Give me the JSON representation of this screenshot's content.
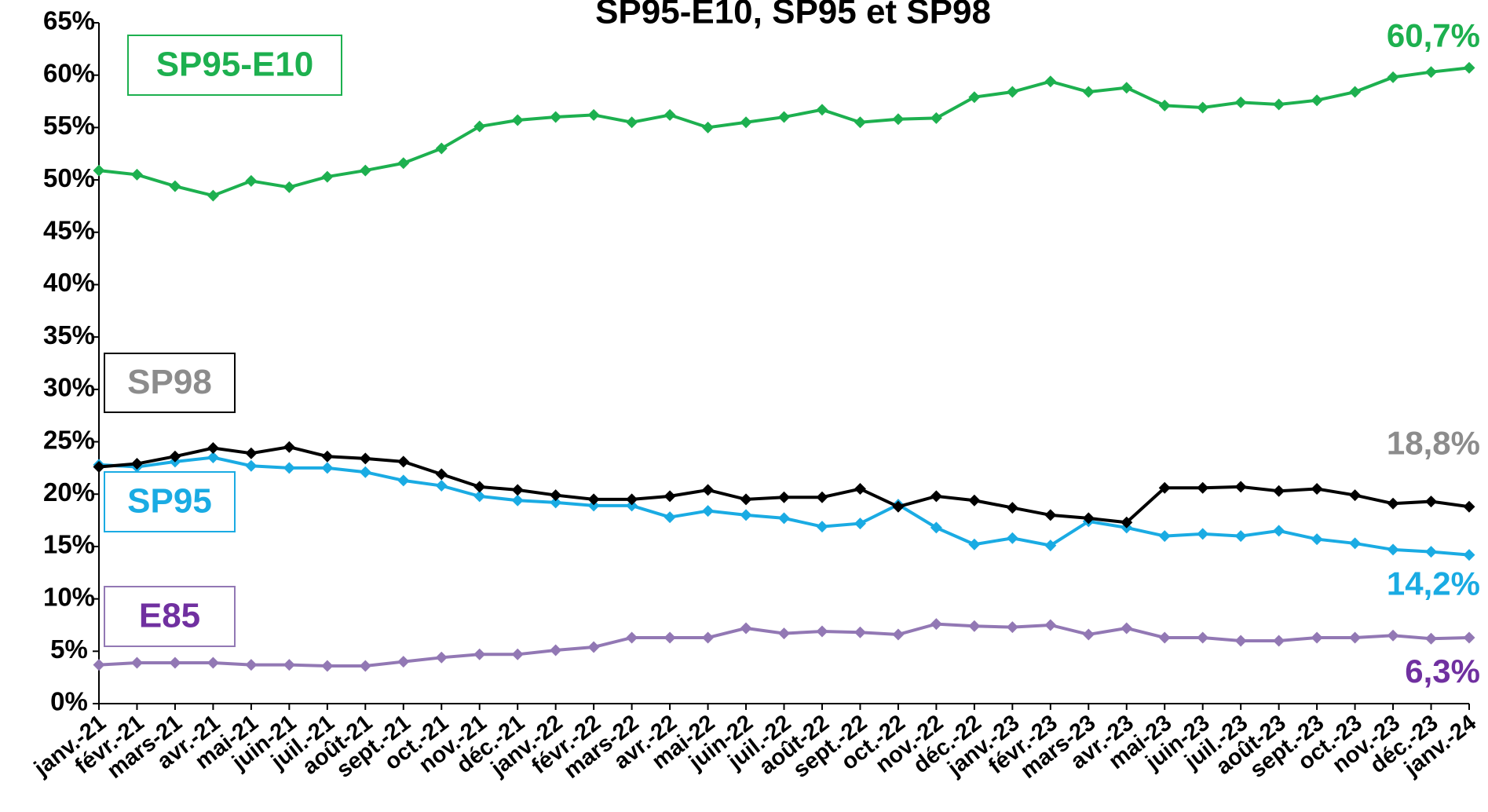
{
  "chart_data": {
    "type": "line",
    "title": "SP95-E10, SP95 et SP98",
    "categories": [
      "janv.-21",
      "févr.-21",
      "mars-21",
      "avr.-21",
      "mai-21",
      "juin-21",
      "juil.-21",
      "août-21",
      "sept.-21",
      "oct.-21",
      "nov.-21",
      "déc.-21",
      "janv.-22",
      "févr.-22",
      "mars-22",
      "avr.-22",
      "mai-22",
      "juin-22",
      "juil.-22",
      "août-22",
      "sept.-22",
      "oct.-22",
      "nov.-22",
      "déc.-22",
      "janv.-23",
      "févr.-23",
      "mars-23",
      "avr.-23",
      "mai-23",
      "juin-23",
      "juil.-23",
      "août-23",
      "sept.-23",
      "oct.-23",
      "nov.-23",
      "déc.-23",
      "janv.-24"
    ],
    "series": [
      {
        "name": "SP95-E10",
        "color": "#1db04f",
        "text_color": "#1db04f",
        "values": [
          50.9,
          50.5,
          49.4,
          48.5,
          49.9,
          49.3,
          50.3,
          50.9,
          51.6,
          53.0,
          55.1,
          55.7,
          56.0,
          56.2,
          55.5,
          56.2,
          55.0,
          55.5,
          56.0,
          56.7,
          55.5,
          55.8,
          55.9,
          57.9,
          58.4,
          59.4,
          58.4,
          58.8,
          57.1,
          56.9,
          57.4,
          57.2,
          57.6,
          58.4,
          59.8,
          60.3,
          60.7
        ],
        "value_labels": [
          null,
          null,
          null,
          null,
          null,
          null,
          null,
          null,
          null,
          null,
          null,
          null,
          null,
          null,
          null,
          null,
          null,
          null,
          null,
          null,
          null,
          null,
          null,
          null,
          null,
          null,
          null,
          null,
          null,
          null,
          null,
          null,
          null,
          null,
          null,
          null,
          "60,7%"
        ]
      },
      {
        "name": "SP98",
        "color": "#000000",
        "text_color": "#8c8c8c",
        "values": [
          22.6,
          22.9,
          23.6,
          24.4,
          23.9,
          24.5,
          23.6,
          23.4,
          23.1,
          21.9,
          20.7,
          20.4,
          19.9,
          19.5,
          19.5,
          19.8,
          20.4,
          19.5,
          19.7,
          19.7,
          20.5,
          18.8,
          19.8,
          19.4,
          18.7,
          18.0,
          17.7,
          17.3,
          20.6,
          20.6,
          20.7,
          20.3,
          20.5,
          19.9,
          19.1,
          19.3,
          18.8
        ],
        "value_labels": [
          null,
          null,
          null,
          null,
          null,
          null,
          null,
          null,
          null,
          null,
          null,
          null,
          null,
          null,
          null,
          null,
          null,
          null,
          null,
          null,
          null,
          null,
          null,
          null,
          null,
          null,
          null,
          null,
          null,
          null,
          null,
          null,
          null,
          null,
          null,
          null,
          "18,8%"
        ]
      },
      {
        "name": "SP95",
        "color": "#1aabe3",
        "text_color": "#1aabe3",
        "values": [
          22.8,
          22.6,
          23.1,
          23.5,
          22.7,
          22.5,
          22.5,
          22.1,
          21.3,
          20.8,
          19.8,
          19.4,
          19.2,
          18.9,
          18.9,
          17.8,
          18.4,
          18.0,
          17.7,
          16.9,
          17.2,
          19.0,
          16.8,
          15.2,
          15.8,
          15.1,
          17.4,
          16.8,
          16.0,
          16.2,
          16.0,
          16.5,
          15.7,
          15.3,
          14.7,
          14.5,
          14.2
        ],
        "value_labels": [
          null,
          null,
          null,
          null,
          null,
          null,
          null,
          null,
          null,
          null,
          null,
          null,
          null,
          null,
          null,
          null,
          null,
          null,
          null,
          null,
          null,
          null,
          null,
          null,
          null,
          null,
          null,
          null,
          null,
          null,
          null,
          null,
          null,
          null,
          null,
          null,
          "14,2%"
        ]
      },
      {
        "name": "E85",
        "color": "#9278b4",
        "text_color": "#7030a0",
        "values": [
          3.7,
          3.9,
          3.9,
          3.9,
          3.7,
          3.7,
          3.6,
          3.6,
          4.0,
          4.4,
          4.7,
          4.7,
          5.1,
          5.4,
          6.3,
          6.3,
          6.3,
          7.2,
          6.7,
          6.9,
          6.8,
          6.6,
          7.6,
          7.4,
          7.3,
          7.5,
          6.6,
          7.2,
          6.3,
          6.3,
          6.0,
          6.0,
          6.3,
          6.3,
          6.5,
          6.2,
          6.3
        ],
        "value_labels": [
          null,
          null,
          null,
          null,
          null,
          null,
          null,
          null,
          null,
          null,
          null,
          null,
          null,
          null,
          null,
          null,
          null,
          null,
          null,
          null,
          null,
          null,
          null,
          null,
          null,
          null,
          null,
          null,
          null,
          null,
          null,
          null,
          null,
          null,
          null,
          null,
          "6,3%"
        ]
      }
    ],
    "ylim": [
      0,
      65
    ],
    "yticks": [
      {
        "value": 0,
        "label": "0%"
      },
      {
        "value": 5,
        "label": "5%"
      },
      {
        "value": 10,
        "label": "10%"
      },
      {
        "value": 15,
        "label": "15%"
      },
      {
        "value": 20,
        "label": "20%"
      },
      {
        "value": 25,
        "label": "25%"
      },
      {
        "value": 30,
        "label": "30%"
      },
      {
        "value": 35,
        "label": "35%"
      },
      {
        "value": 40,
        "label": "40%"
      },
      {
        "value": 45,
        "label": "45%"
      },
      {
        "value": 50,
        "label": "50%"
      },
      {
        "value": 55,
        "label": "55%"
      },
      {
        "value": 60,
        "label": "60%"
      },
      {
        "value": 65,
        "label": "65%"
      }
    ],
    "grid": false
  }
}
